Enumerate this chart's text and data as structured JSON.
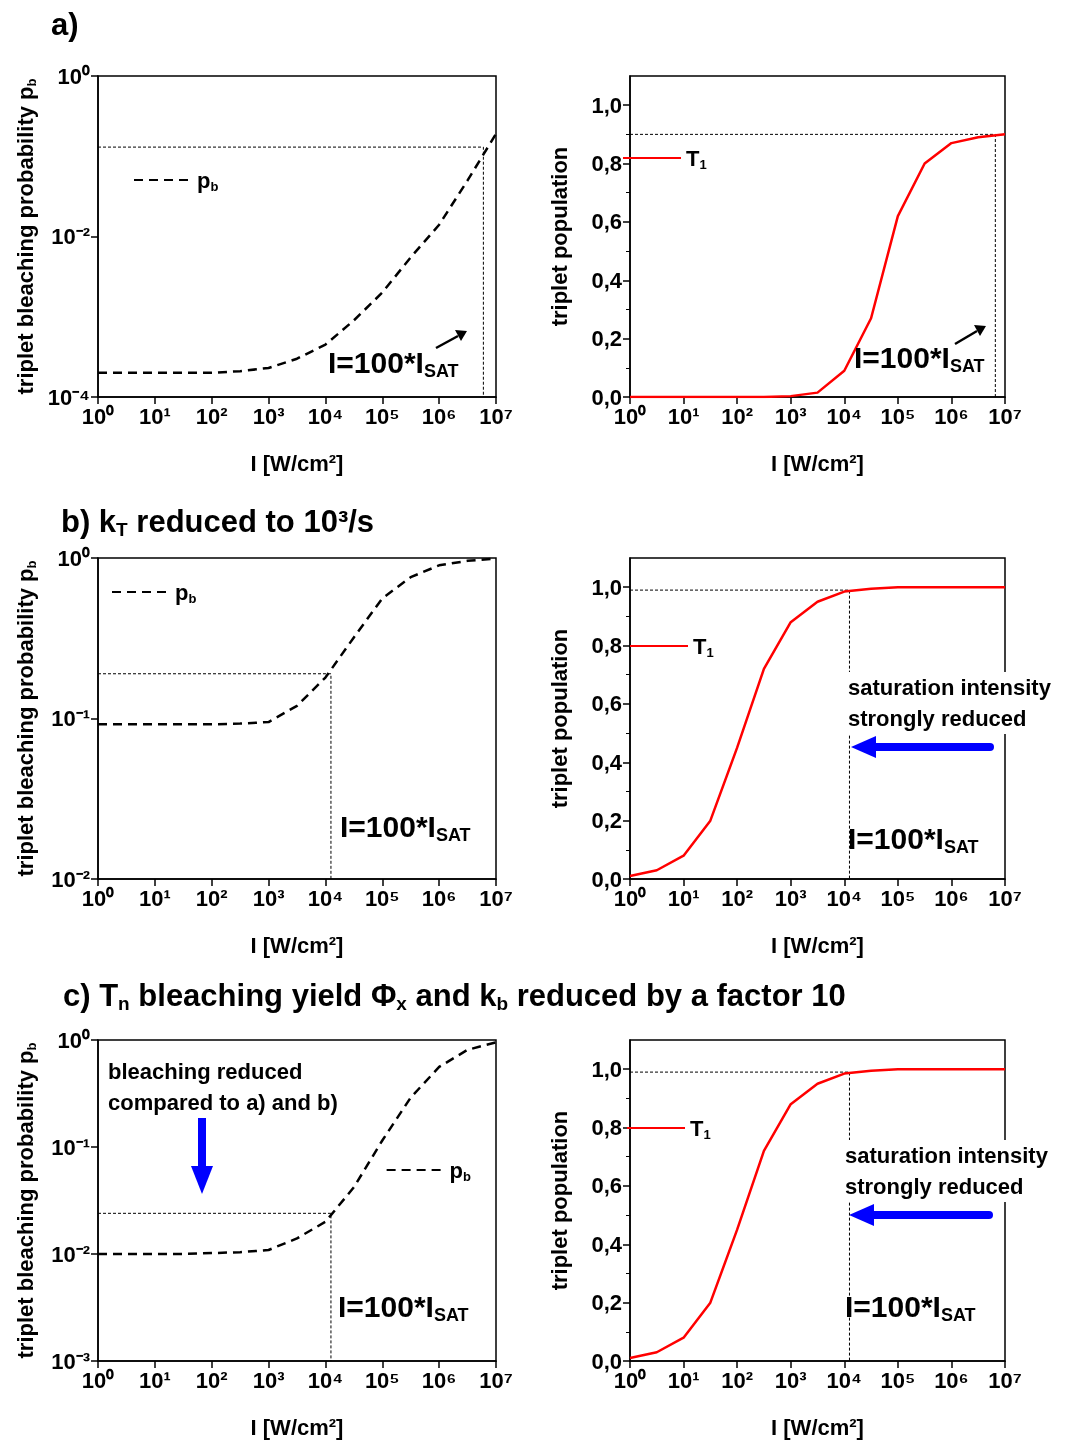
{
  "chart_data": [
    {
      "type": "line",
      "title": "a)",
      "xlabel": "I [W/cm²]",
      "ylabel": "triplet bleaching probability p$_{b}$",
      "log": "xy",
      "grid": false,
      "legend": "top left",
      "marker": "none",
      "x": [
        1,
        3.16,
        10,
        31.6,
        100,
        316,
        1000,
        3162,
        10000,
        31620,
        100000,
        316200,
        1000000,
        3162000,
        10000000
      ],
      "xlim": [
        1,
        10000000
      ],
      "xticks": [
        {
          "value": 1,
          "label": "10⁰"
        },
        {
          "value": 10,
          "label": "10¹"
        },
        {
          "value": 100,
          "label": "10²"
        },
        {
          "value": 1000,
          "label": "10³"
        },
        {
          "value": 10000,
          "label": "10⁴"
        },
        {
          "value": 100000,
          "label": "10⁵"
        },
        {
          "value": 1000000,
          "label": "10⁶"
        },
        {
          "value": 10000000,
          "label": "10⁷"
        }
      ],
      "ylim": [
        0.0001,
        1
      ],
      "yticks": [
        {
          "value": 0.0001,
          "label": "10⁻⁴"
        },
        {
          "value": 0.01,
          "label": "10⁻²"
        },
        {
          "value": 1,
          "label": "10⁰"
        }
      ],
      "series": [
        {
          "color": "#000000",
          "line_style": "dotted",
          "x": [
            1,
            6000000,
            6000000
          ],
          "values": [
            0.13,
            0.13,
            0.0001
          ]
        },
        {
          "name": "p$_{b}$",
          "color": "#000000",
          "line_style": "dashed",
          "values": [
            0.0002,
            0.0002,
            0.0002,
            0.0002,
            0.0002,
            0.00021,
            0.00023,
            0.0003,
            0.00045,
            0.0009,
            0.002,
            0.0055,
            0.014,
            0.05,
            0.19
          ]
        }
      ],
      "annotations": [
        "I=100*I$_{SAT}$"
      ]
    },
    {
      "type": "line",
      "xlabel": "I [W/cm²]",
      "ylabel": "triplet population",
      "log": "x",
      "grid": false,
      "legend": "top left",
      "marker": "none",
      "x": [
        1,
        3.16,
        10,
        31.6,
        100,
        316,
        1000,
        3162,
        10000,
        31620,
        100000,
        316200,
        1000000,
        3162000,
        10000000
      ],
      "xlim": [
        1,
        10000000
      ],
      "xticks": [
        {
          "value": 1,
          "label": "10⁰"
        },
        {
          "value": 10,
          "label": "10¹"
        },
        {
          "value": 100,
          "label": "10²"
        },
        {
          "value": 1000,
          "label": "10³"
        },
        {
          "value": 10000,
          "label": "10⁴"
        },
        {
          "value": 100000,
          "label": "10⁵"
        },
        {
          "value": 1000000,
          "label": "10⁶"
        },
        {
          "value": 10000000,
          "label": "10⁷"
        }
      ],
      "ylim": [
        0,
        1.1
      ],
      "yticks": [
        {
          "value": 0,
          "label": "0,0"
        },
        {
          "value": 0.2,
          "label": "0,2"
        },
        {
          "value": 0.4,
          "label": "0,4"
        },
        {
          "value": 0.6,
          "label": "0,6"
        },
        {
          "value": 0.8,
          "label": "0,8"
        },
        {
          "value": 1,
          "label": "1,0"
        }
      ],
      "series": [
        {
          "color": "#000000",
          "line_style": "dotted",
          "x": [
            1,
            6600000,
            6600000
          ],
          "values": [
            0.9,
            0.9,
            0
          ]
        },
        {
          "name": "T$_{1}$",
          "color": "#ff0000",
          "line_style": "solid",
          "values": [
            0,
            0,
            0,
            0,
            0,
            0,
            0.003,
            0.015,
            0.09,
            0.27,
            0.62,
            0.8,
            0.87,
            0.89,
            0.9
          ]
        }
      ],
      "annotations": [
        "I=100*I$_{SAT}$"
      ]
    },
    {
      "type": "line",
      "title": "b) k$_{T}$ reduced to 10³/s",
      "xlabel": "I [W/cm²]",
      "ylabel": "triplet bleaching probability p$_{b}$",
      "log": "xy",
      "grid": false,
      "legend": "top left",
      "marker": "none",
      "x": [
        1,
        3.16,
        10,
        31.6,
        100,
        316,
        1000,
        3162,
        10000,
        31620,
        100000,
        316200,
        1000000,
        3162000,
        10000000
      ],
      "xlim": [
        1,
        10000000
      ],
      "xticks": [
        {
          "value": 1,
          "label": "10⁰"
        },
        {
          "value": 10,
          "label": "10¹"
        },
        {
          "value": 100,
          "label": "10²"
        },
        {
          "value": 1000,
          "label": "10³"
        },
        {
          "value": 10000,
          "label": "10⁴"
        },
        {
          "value": 100000,
          "label": "10⁵"
        },
        {
          "value": 1000000,
          "label": "10⁶"
        },
        {
          "value": 10000000,
          "label": "10⁷"
        }
      ],
      "ylim": [
        0.01,
        1
      ],
      "yticks": [
        {
          "value": 0.01,
          "label": "10⁻²"
        },
        {
          "value": 0.1,
          "label": "10⁻¹"
        },
        {
          "value": 1,
          "label": "10⁰"
        }
      ],
      "series": [
        {
          "color": "#000000",
          "line_style": "dotted",
          "x": [
            1,
            12500,
            12500
          ],
          "values": [
            0.19,
            0.19,
            0.01
          ]
        },
        {
          "name": "p$_{b}$",
          "color": "#000000",
          "line_style": "dashed",
          "values": [
            0.092,
            0.092,
            0.092,
            0.092,
            0.092,
            0.093,
            0.095,
            0.12,
            0.18,
            0.32,
            0.56,
            0.76,
            0.9,
            0.96,
            0.99
          ]
        }
      ],
      "annotations": [
        "I=100*I$_{SAT}$"
      ]
    },
    {
      "type": "line",
      "xlabel": "I [W/cm²]",
      "ylabel": "triplet population",
      "log": "x",
      "grid": false,
      "legend": "top left",
      "marker": "none",
      "x": [
        1,
        3.16,
        10,
        31.6,
        100,
        316,
        1000,
        3162,
        10000,
        31620,
        100000,
        316200,
        1000000,
        3162000,
        10000000
      ],
      "xlim": [
        1,
        10000000
      ],
      "xticks": [
        {
          "value": 1,
          "label": "10⁰"
        },
        {
          "value": 10,
          "label": "10¹"
        },
        {
          "value": 100,
          "label": "10²"
        },
        {
          "value": 1000,
          "label": "10³"
        },
        {
          "value": 10000,
          "label": "10⁴"
        },
        {
          "value": 100000,
          "label": "10⁵"
        },
        {
          "value": 1000000,
          "label": "10⁶"
        },
        {
          "value": 10000000,
          "label": "10⁷"
        }
      ],
      "ylim": [
        0,
        1.1
      ],
      "yticks": [
        {
          "value": 0,
          "label": "0,0"
        },
        {
          "value": 0.2,
          "label": "0,2"
        },
        {
          "value": 0.4,
          "label": "0,4"
        },
        {
          "value": 0.6,
          "label": "0,6"
        },
        {
          "value": 0.8,
          "label": "0,8"
        },
        {
          "value": 1,
          "label": "1,0"
        }
      ],
      "series": [
        {
          "color": "#000000",
          "line_style": "dotted",
          "x": [
            1,
            12500,
            12500
          ],
          "values": [
            0.99,
            0.99,
            0
          ]
        },
        {
          "name": "T$_{1}$",
          "color": "#ff0000",
          "line_style": "solid",
          "values": [
            0.01,
            0.03,
            0.08,
            0.2,
            0.45,
            0.72,
            0.88,
            0.95,
            0.985,
            0.995,
            1,
            1,
            1,
            1,
            1
          ]
        }
      ],
      "annotations": [
        "saturation intensity strongly reduced",
        "I=100*I$_{SAT}$"
      ]
    },
    {
      "type": "line",
      "title": "c) T$_{n}$ bleaching yield Φ$_{x}$ and k$_{b}$ reduced by a factor 10",
      "xlabel": "I [W/cm²]",
      "ylabel": "triplet bleaching probability p$_{b}$",
      "log": "xy",
      "grid": false,
      "legend": "right",
      "marker": "none",
      "x": [
        1,
        3.16,
        10,
        31.6,
        100,
        316,
        1000,
        3162,
        10000,
        31620,
        100000,
        316200,
        1000000,
        3162000,
        10000000
      ],
      "xlim": [
        1,
        10000000
      ],
      "xticks": [
        {
          "value": 1,
          "label": "10⁰"
        },
        {
          "value": 10,
          "label": "10¹"
        },
        {
          "value": 100,
          "label": "10²"
        },
        {
          "value": 1000,
          "label": "10³"
        },
        {
          "value": 10000,
          "label": "10⁴"
        },
        {
          "value": 100000,
          "label": "10⁵"
        },
        {
          "value": 1000000,
          "label": "10⁶"
        },
        {
          "value": 10000000,
          "label": "10⁷"
        }
      ],
      "ylim": [
        0.001,
        1
      ],
      "yticks": [
        {
          "value": 0.001,
          "label": "10⁻³"
        },
        {
          "value": 0.01,
          "label": "10⁻²"
        },
        {
          "value": 0.1,
          "label": "10⁻¹"
        },
        {
          "value": 1,
          "label": "10⁰"
        }
      ],
      "series": [
        {
          "color": "#000000",
          "line_style": "dotted",
          "x": [
            1,
            12500,
            12500
          ],
          "values": [
            0.024,
            0.024,
            0.001
          ]
        },
        {
          "name": "p$_{b}$",
          "color": "#000000",
          "line_style": "dashed",
          "values": [
            0.01,
            0.01,
            0.01,
            0.01,
            0.0102,
            0.0104,
            0.0109,
            0.014,
            0.02,
            0.042,
            0.115,
            0.29,
            0.56,
            0.81,
            0.95
          ]
        }
      ],
      "annotations": [
        "bleaching reduced compared to a) and b)",
        "I=100*I$_{SAT}$"
      ]
    },
    {
      "type": "line",
      "xlabel": "I [W/cm²]",
      "ylabel": "triplet population",
      "log": "x",
      "grid": false,
      "legend": "top left",
      "marker": "none",
      "x": [
        1,
        3.16,
        10,
        31.6,
        100,
        316,
        1000,
        3162,
        10000,
        31620,
        100000,
        316200,
        1000000,
        3162000,
        10000000
      ],
      "xlim": [
        1,
        10000000
      ],
      "xticks": [
        {
          "value": 1,
          "label": "10⁰"
        },
        {
          "value": 10,
          "label": "10¹"
        },
        {
          "value": 100,
          "label": "10²"
        },
        {
          "value": 1000,
          "label": "10³"
        },
        {
          "value": 10000,
          "label": "10⁴"
        },
        {
          "value": 100000,
          "label": "10⁵"
        },
        {
          "value": 1000000,
          "label": "10⁶"
        },
        {
          "value": 10000000,
          "label": "10⁷"
        }
      ],
      "ylim": [
        0,
        1.1
      ],
      "yticks": [
        {
          "value": 0,
          "label": "0,0"
        },
        {
          "value": 0.2,
          "label": "0,2"
        },
        {
          "value": 0.4,
          "label": "0,4"
        },
        {
          "value": 0.6,
          "label": "0,6"
        },
        {
          "value": 0.8,
          "label": "0,8"
        },
        {
          "value": 1,
          "label": "1,0"
        }
      ],
      "series": [
        {
          "color": "#000000",
          "line_style": "dotted",
          "x": [
            1,
            12500,
            12500
          ],
          "values": [
            0.99,
            0.99,
            0
          ]
        },
        {
          "name": "T$_{1}$",
          "color": "#ff0000",
          "line_style": "solid",
          "values": [
            0.01,
            0.03,
            0.08,
            0.2,
            0.45,
            0.72,
            0.88,
            0.95,
            0.985,
            0.995,
            1,
            1,
            1,
            1,
            1
          ]
        }
      ],
      "annotations": [
        "saturation intensity strongly reduced",
        "I=100*I$_{SAT}$"
      ]
    }
  ]
}
